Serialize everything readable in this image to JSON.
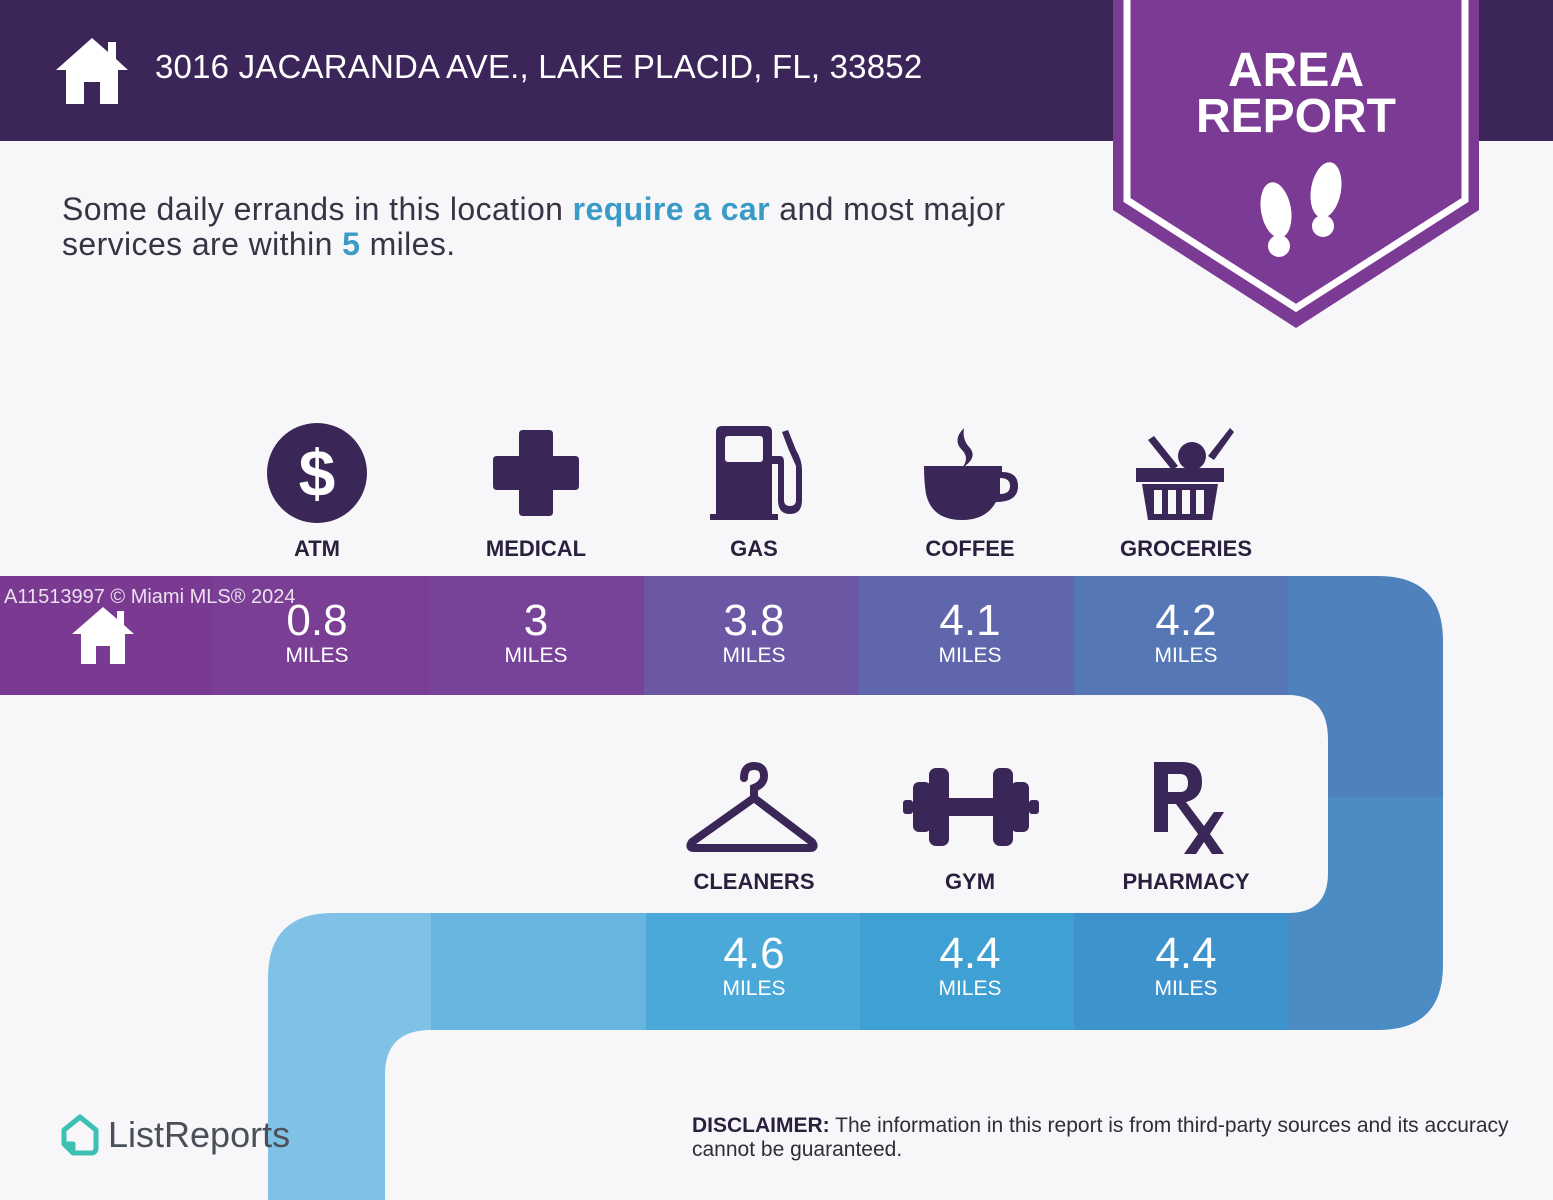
{
  "header": {
    "address": "3016 JACARANDA AVE., LAKE PLACID, FL, 33852",
    "badge_line1": "AREA",
    "badge_line2": "REPORT"
  },
  "summary": {
    "part1": "Some daily errands in this location ",
    "highlight1": "require a car",
    "part2": " and most major services are within ",
    "highlight2": "5",
    "part3": " miles."
  },
  "row1": [
    {
      "label": "ATM",
      "value": "0.8",
      "unit": "MILES",
      "icon": "dollar-icon"
    },
    {
      "label": "MEDICAL",
      "value": "3",
      "unit": "MILES",
      "icon": "medical-cross-icon"
    },
    {
      "label": "GAS",
      "value": "3.8",
      "unit": "MILES",
      "icon": "gas-pump-icon"
    },
    {
      "label": "COFFEE",
      "value": "4.1",
      "unit": "MILES",
      "icon": "coffee-cup-icon"
    },
    {
      "label": "GROCERIES",
      "value": "4.2",
      "unit": "MILES",
      "icon": "grocery-basket-icon"
    }
  ],
  "row2": [
    {
      "label": "CLEANERS",
      "value": "4.6",
      "unit": "MILES",
      "icon": "hanger-icon"
    },
    {
      "label": "GYM",
      "value": "4.4",
      "unit": "MILES",
      "icon": "dumbbell-icon"
    },
    {
      "label": "PHARMACY",
      "value": "4.4",
      "unit": "MILES",
      "icon": "rx-icon"
    }
  ],
  "watermark": "A11513997 © Miami MLS® 2024",
  "brand": "ListReports",
  "disclaimer": {
    "title": "DISCLAIMER:",
    "text": " The information in this report is from third-party sources and its accuracy cannot be guaranteed."
  },
  "colors": {
    "header": "#3c2659",
    "badge": "#7b3a94",
    "accent": "#3a9bc7"
  }
}
